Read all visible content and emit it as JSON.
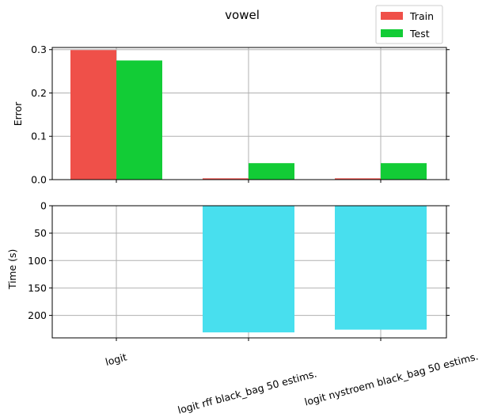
{
  "chart_data": [
    {
      "type": "bar",
      "title": "vowel",
      "ylabel": "Error",
      "categories": [
        "logit",
        "logit rff black_bag 50 estims.",
        "logit nystroem black_bag 50 estims."
      ],
      "series": [
        {
          "name": "Train",
          "values": [
            0.299,
            0.003,
            0.003
          ],
          "color": "#ef5049"
        },
        {
          "name": "Test",
          "values": [
            0.275,
            0.038,
            0.038
          ],
          "color": "#12cc36"
        }
      ],
      "ylim": [
        0,
        0.305
      ],
      "yticks": [
        "0.0",
        "0.1",
        "0.2",
        "0.3"
      ],
      "ytick_values": [
        0,
        0.1,
        0.2,
        0.3
      ],
      "grid": true,
      "legend": "top-right"
    },
    {
      "type": "bar",
      "ylabel": "Time (s)",
      "categories": [
        "logit",
        "logit rff black_bag 50 estims.",
        "logit nystroem black_bag 50 estims."
      ],
      "series": [
        {
          "values": [
            0,
            231,
            226
          ],
          "color": "#48dfee"
        }
      ],
      "ylim": [
        0,
        241
      ],
      "yticks": [
        "0",
        "50",
        "100",
        "150",
        "200"
      ],
      "ytick_values": [
        0,
        50,
        100,
        150,
        200
      ],
      "inverted_y": true,
      "grid": true
    }
  ]
}
